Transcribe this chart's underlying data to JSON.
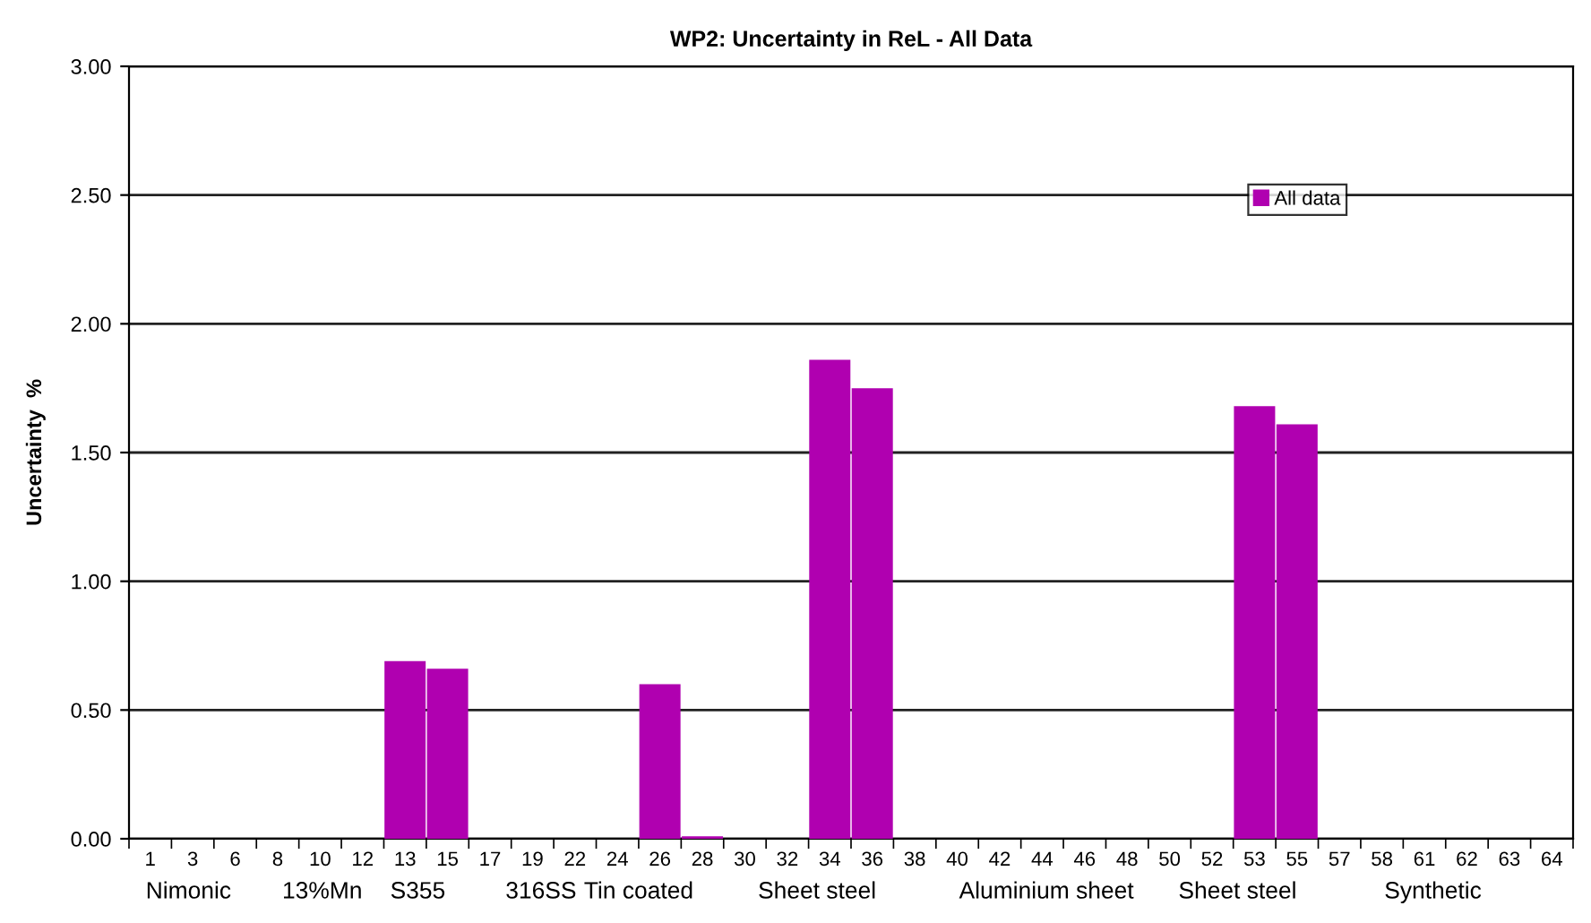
{
  "chart_data": {
    "type": "bar",
    "title": "WP2: Uncertainty in ReL - All Data",
    "ylabel": "Uncertainty  %",
    "categories": [
      "1",
      "3",
      "6",
      "8",
      "10",
      "12",
      "13",
      "15",
      "17",
      "19",
      "22",
      "24",
      "26",
      "28",
      "30",
      "32",
      "34",
      "36",
      "38",
      "40",
      "42",
      "44",
      "46",
      "48",
      "50",
      "52",
      "53",
      "55",
      "57",
      "58",
      "61",
      "62",
      "63",
      "64"
    ],
    "series": [
      {
        "name": "All data",
        "color": "#b000b0",
        "values": [
          0,
          0,
          0,
          0,
          0,
          0,
          0.69,
          0.66,
          0,
          0,
          0,
          0,
          0.6,
          0.01,
          0,
          0,
          1.86,
          1.75,
          0,
          0,
          0,
          0,
          0,
          0,
          0,
          0,
          1.68,
          1.61,
          0,
          0,
          0,
          0,
          0,
          0
        ]
      }
    ],
    "ylim": [
      0,
      3
    ],
    "yticks": [
      {
        "value": 0,
        "label": "0.00"
      },
      {
        "value": 0.5,
        "label": "0.50"
      },
      {
        "value": 1,
        "label": "1.00"
      },
      {
        "value": 1.5,
        "label": "1.50"
      },
      {
        "value": 2,
        "label": "2.00"
      },
      {
        "value": 2.5,
        "label": "2.50"
      },
      {
        "value": 3,
        "label": "3.00"
      }
    ],
    "grid": "y",
    "legend": "top right",
    "annotations": [
      "Nimonic",
      "13%Mn",
      "S355",
      "316SS",
      "Tin coated",
      "Sheet steel",
      "Aluminium sheet",
      "Sheet steel",
      "Synthetic"
    ]
  }
}
